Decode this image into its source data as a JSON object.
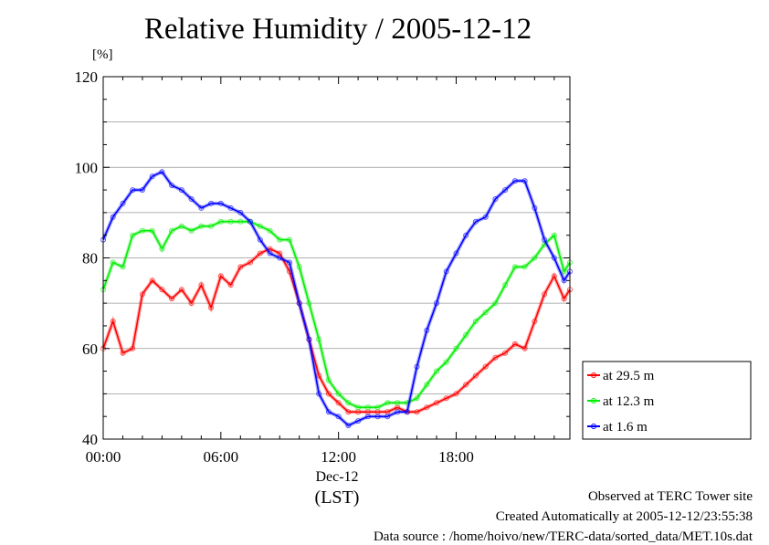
{
  "title": "Relative Humidity / 2005-12-12",
  "unit_label": "[%]",
  "footer": {
    "line1": "Observed at TERC Tower site",
    "line2": "Created Automatically at 2005-12-12/23:55:38",
    "line3": "Data source : /home/hoivo/new/TERC-data/sorted_data/MET.10s.dat"
  },
  "chart_data": {
    "type": "line",
    "title": "Relative Humidity / 2005-12-12",
    "ylabel": "[%]",
    "ylim": [
      40,
      120
    ],
    "yticks": [
      "40",
      "60",
      "80",
      "100",
      "120"
    ],
    "xlim": [
      0,
      23.8
    ],
    "xticks": [
      {
        "x": 0,
        "label": "00:00"
      },
      {
        "x": 6,
        "label": "06:00"
      },
      {
        "x": 12,
        "label": "12:00"
      },
      {
        "x": 18,
        "label": "18:00"
      }
    ],
    "date_label": "Dec-12",
    "time_label": "(LST)",
    "grid": "horizontal",
    "legend_position": "right",
    "series": [
      {
        "name": "at 29.5 m",
        "color": "#ff0000",
        "x": [
          0,
          0.5,
          1,
          1.5,
          2,
          2.5,
          3,
          3.5,
          4,
          4.5,
          5,
          5.5,
          6,
          6.5,
          7,
          7.5,
          8,
          8.5,
          9,
          9.5,
          10,
          10.5,
          11,
          11.5,
          12,
          12.5,
          13,
          13.5,
          14,
          14.5,
          15,
          15.5,
          16,
          16.5,
          17,
          17.5,
          18,
          18.5,
          19,
          19.5,
          20,
          20.5,
          21,
          21.5,
          22,
          22.5,
          23,
          23.5,
          23.8
        ],
        "values": [
          60,
          66,
          59,
          60,
          72,
          75,
          73,
          71,
          73,
          70,
          74,
          69,
          76,
          74,
          78,
          79,
          81,
          82,
          81,
          77,
          70,
          62,
          54,
          50,
          48,
          46,
          46,
          46,
          46,
          46,
          47,
          46,
          46,
          47,
          48,
          49,
          50,
          52,
          54,
          56,
          58,
          59,
          61,
          60,
          66,
          72,
          76,
          71,
          73
        ]
      },
      {
        "name": "at 12.3 m",
        "color": "#00ee00",
        "x": [
          0,
          0.5,
          1,
          1.5,
          2,
          2.5,
          3,
          3.5,
          4,
          4.5,
          5,
          5.5,
          6,
          6.5,
          7,
          7.5,
          8,
          8.5,
          9,
          9.5,
          10,
          10.5,
          11,
          11.5,
          12,
          12.5,
          13,
          13.5,
          14,
          14.5,
          15,
          15.5,
          16,
          16.5,
          17,
          17.5,
          18,
          18.5,
          19,
          19.5,
          20,
          20.5,
          21,
          21.5,
          22,
          22.5,
          23,
          23.5,
          23.8
        ],
        "values": [
          73,
          79,
          78,
          85,
          86,
          86,
          82,
          86,
          87,
          86,
          87,
          87,
          88,
          88,
          88,
          88,
          87,
          86,
          84,
          84,
          78,
          70,
          62,
          53,
          50,
          48,
          47,
          47,
          47,
          48,
          48,
          48,
          49,
          52,
          55,
          57,
          60,
          63,
          66,
          68,
          70,
          74,
          78,
          78,
          80,
          83,
          85,
          77,
          79
        ]
      },
      {
        "name": "at 1.6 m",
        "color": "#0000ff",
        "x": [
          0,
          0.5,
          1,
          1.5,
          2,
          2.5,
          3,
          3.5,
          4,
          4.5,
          5,
          5.5,
          6,
          6.5,
          7,
          7.5,
          8,
          8.5,
          9,
          9.5,
          10,
          10.5,
          11,
          11.5,
          12,
          12.5,
          13,
          13.5,
          14,
          14.5,
          15,
          15.5,
          16,
          16.5,
          17,
          17.5,
          18,
          18.5,
          19,
          19.5,
          20,
          20.5,
          21,
          21.5,
          22,
          22.5,
          23,
          23.5,
          23.8
        ],
        "values": [
          84,
          89,
          92,
          95,
          95,
          98,
          99,
          96,
          95,
          93,
          91,
          92,
          92,
          91,
          90,
          88,
          84,
          81,
          80,
          79,
          70,
          62,
          50,
          46,
          45,
          43,
          44,
          45,
          45,
          45,
          46,
          46,
          56,
          64,
          70,
          77,
          81,
          85,
          88,
          89,
          93,
          95,
          97,
          97,
          91,
          84,
          80,
          75,
          77
        ]
      }
    ]
  }
}
